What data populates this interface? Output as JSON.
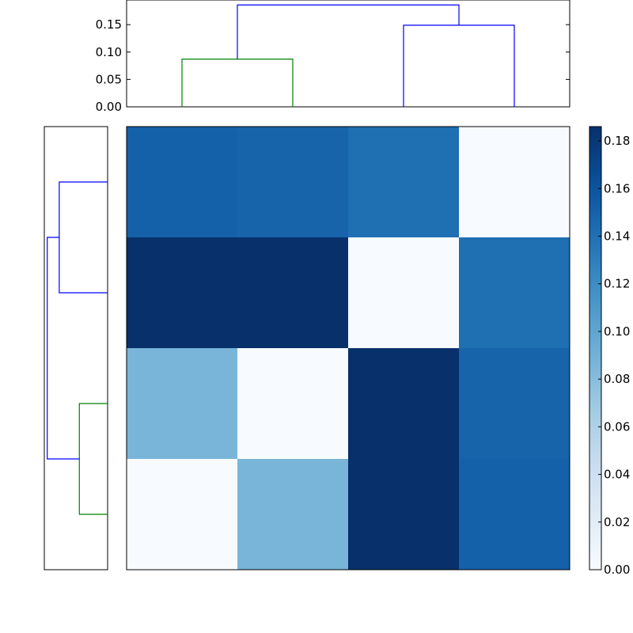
{
  "chart_data": {
    "type": "heatmap",
    "title": "",
    "xlabel": "",
    "ylabel": "",
    "rows_top_to_bottom": [
      [
        0.151,
        0.149,
        0.141,
        0.0
      ],
      [
        0.186,
        0.186,
        0.0,
        0.141
      ],
      [
        0.087,
        0.0,
        0.186,
        0.149
      ],
      [
        0.0,
        0.087,
        0.186,
        0.151
      ]
    ],
    "colormap": "Blues",
    "colorbar": {
      "range": [
        0,
        0.186
      ],
      "tick_values": [
        0.0,
        0.02,
        0.04,
        0.06,
        0.08,
        0.1,
        0.12,
        0.14,
        0.16,
        0.18
      ],
      "tick_labels": [
        "0.00",
        "0.02",
        "0.04",
        "0.06",
        "0.08",
        "0.10",
        "0.12",
        "0.14",
        "0.16",
        "0.18"
      ]
    },
    "top_dendrogram": {
      "orientation": "top",
      "leaf_count": 4,
      "ylim": [
        0,
        0.195
      ],
      "tick_values": [
        0.0,
        0.05,
        0.1,
        0.15
      ],
      "tick_labels": [
        "0.00",
        "0.05",
        "0.10",
        "0.15"
      ],
      "links": [
        {
          "left_pos": 0,
          "right_pos": 1,
          "left_height": 0,
          "right_height": 0,
          "height": 0.087,
          "color": "#008000"
        },
        {
          "left_pos": 2,
          "right_pos": 3,
          "left_height": 0,
          "right_height": 0,
          "height": 0.149,
          "color": "#0000ff"
        },
        {
          "left_pos": 0.5,
          "right_pos": 2.5,
          "left_height": 0.087,
          "right_height": 0.149,
          "height": 0.186,
          "color": "#0000ff"
        }
      ]
    },
    "left_dendrogram": {
      "orientation": "left",
      "leaf_count": 4,
      "links": [
        {
          "top_pos": 0,
          "bottom_pos": 1,
          "top_height": 0,
          "bottom_height": 0,
          "height": 0.149,
          "color": "#0000ff"
        },
        {
          "top_pos": 2,
          "bottom_pos": 3,
          "top_height": 0,
          "bottom_height": 0,
          "height": 0.087,
          "color": "#008000"
        },
        {
          "top_pos": 0.5,
          "bottom_pos": 2.5,
          "top_height": 0.149,
          "bottom_height": 0.087,
          "height": 0.186,
          "color": "#0000ff"
        }
      ]
    }
  }
}
